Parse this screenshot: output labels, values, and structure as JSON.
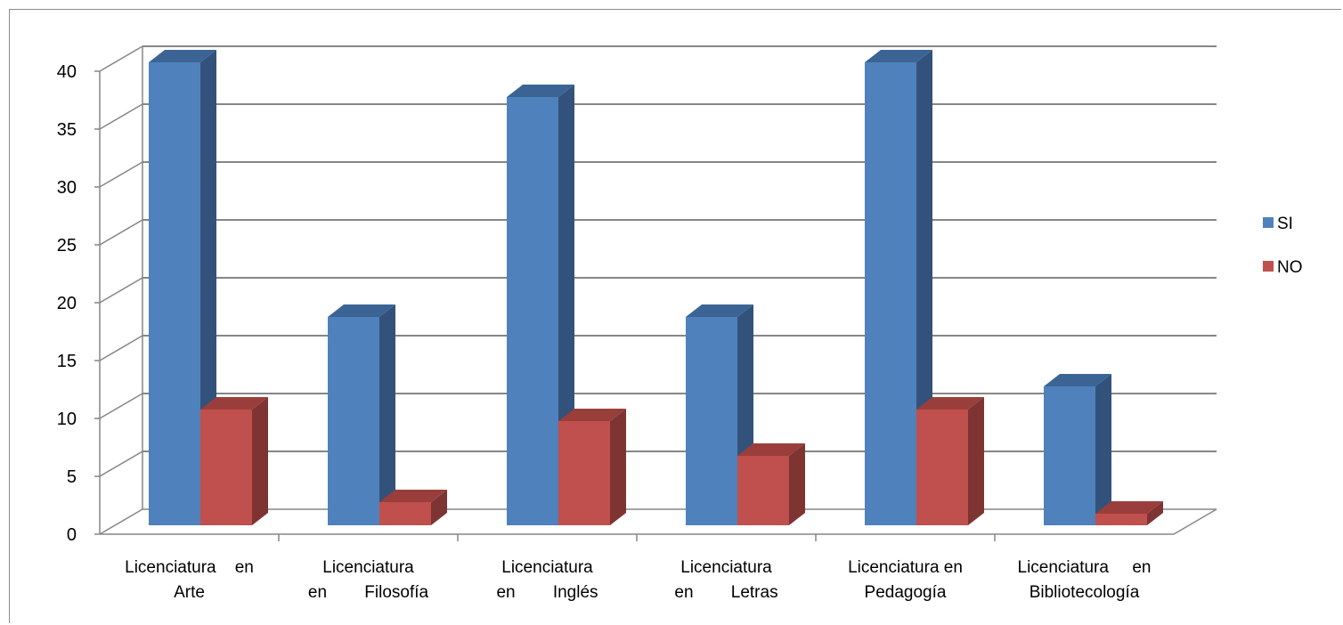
{
  "chart_data": {
    "type": "bar",
    "style": "3d-clustered-column",
    "categories": [
      [
        "Licenciatura    en",
        "Arte"
      ],
      [
        "Licenciatura",
        "en        Filosofía"
      ],
      [
        "Licenciatura",
        "en        Inglés"
      ],
      [
        "Licenciatura",
        "en        Letras"
      ],
      [
        "Licenciatura en",
        "Pedagogía"
      ],
      [
        "Licenciatura     en",
        "Bibliotecología"
      ]
    ],
    "series": [
      {
        "name": "SI",
        "values": [
          40,
          18,
          37,
          18,
          40,
          12
        ],
        "color": "#4F81BD",
        "side": "#33527B",
        "top": "#3B6495"
      },
      {
        "name": "NO",
        "values": [
          10,
          2,
          9,
          6,
          10,
          1
        ],
        "color": "#C0504D",
        "side": "#7E3432",
        "top": "#9A3E3C"
      }
    ],
    "yticks": [
      0,
      5,
      10,
      15,
      20,
      25,
      30,
      35,
      40
    ],
    "ylim": [
      0,
      40
    ],
    "grid": true,
    "legend": "right",
    "colors": {
      "grid": "#868686",
      "axis": "#868686"
    }
  }
}
